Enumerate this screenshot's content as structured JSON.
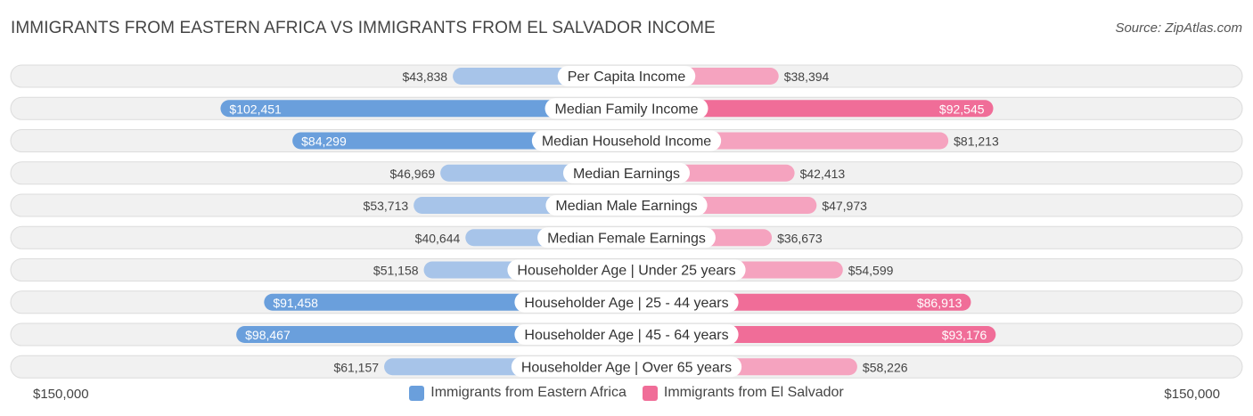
{
  "title": "IMMIGRANTS FROM EASTERN AFRICA VS IMMIGRANTS FROM EL SALVADOR INCOME",
  "source": "Source: ZipAtlas.com",
  "colors": {
    "left_light": "#a7c4e9",
    "left_strong": "#6a9fdc",
    "right_light": "#f5a3bf",
    "right_strong": "#f06d98",
    "row_bg": "#f1f1f1",
    "row_border": "#dcdcdc"
  },
  "legend": {
    "left": "Immigrants from Eastern Africa",
    "right": "Immigrants from El Salvador"
  },
  "axis": {
    "left_label": "$150,000",
    "right_label": "$150,000"
  },
  "chart_data": {
    "type": "bar",
    "orientation": "horizontal-diverging",
    "max": 150000,
    "categories": [
      "Per Capita Income",
      "Median Family Income",
      "Median Household Income",
      "Median Earnings",
      "Median Male Earnings",
      "Median Female Earnings",
      "Householder Age | Under 25 years",
      "Householder Age | 25 - 44 years",
      "Householder Age | 45 - 64 years",
      "Householder Age | Over 65 years"
    ],
    "series": [
      {
        "name": "Immigrants from Eastern Africa",
        "values": [
          43838,
          102451,
          84299,
          46969,
          53713,
          40644,
          51158,
          91458,
          98467,
          61157
        ],
        "labels": [
          "$43,838",
          "$102,451",
          "$84,299",
          "$46,969",
          "$53,713",
          "$40,644",
          "$51,158",
          "$91,458",
          "$98,467",
          "$61,157"
        ]
      },
      {
        "name": "Immigrants from El Salvador",
        "values": [
          38394,
          92545,
          81213,
          42413,
          47973,
          36673,
          54599,
          86913,
          93176,
          58226
        ],
        "labels": [
          "$38,394",
          "$92,545",
          "$81,213",
          "$42,413",
          "$47,973",
          "$36,673",
          "$54,599",
          "$86,913",
          "$93,176",
          "$58,226"
        ]
      }
    ]
  }
}
